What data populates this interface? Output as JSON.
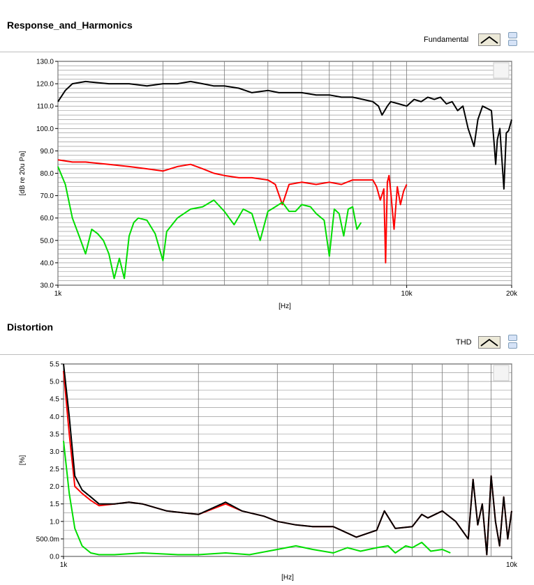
{
  "panels": [
    {
      "title": "Response_and_Harmonics",
      "legend_label": "Fundamental",
      "xlabel": "[Hz]",
      "ylabel": "[dB re 20u Pa]"
    },
    {
      "title": "Distortion",
      "legend_label": "THD",
      "xlabel": "[Hz]",
      "ylabel": "[%]"
    }
  ],
  "chart_data": [
    {
      "type": "line",
      "title": "Response_and_Harmonics",
      "xlabel": "[Hz]",
      "ylabel": "[dB re 20u Pa]",
      "x_scale": "log",
      "xlim": [
        1000,
        20000
      ],
      "ylim": [
        30,
        130
      ],
      "grid": true,
      "x_ticks": [
        {
          "v": 1000,
          "label": "1k"
        },
        {
          "v": 10000,
          "label": "10k"
        },
        {
          "v": 20000,
          "label": "20k"
        }
      ],
      "y_ticks": [
        {
          "v": 30,
          "label": "30.0"
        },
        {
          "v": 40,
          "label": "40.0"
        },
        {
          "v": 50,
          "label": "50.0"
        },
        {
          "v": 60,
          "label": "60.0"
        },
        {
          "v": 70,
          "label": "70.0"
        },
        {
          "v": 80,
          "label": "80.0"
        },
        {
          "v": 90,
          "label": "90.0"
        },
        {
          "v": 100,
          "label": "100.0"
        },
        {
          "v": 110,
          "label": "110.0"
        },
        {
          "v": 120,
          "label": "120.0"
        },
        {
          "v": 130,
          "label": "130.0"
        }
      ],
      "series": [
        {
          "color": "#000000",
          "x": [
            1000,
            1050,
            1100,
            1200,
            1400,
            1600,
            1800,
            2000,
            2200,
            2400,
            2600,
            2800,
            3000,
            3300,
            3600,
            4000,
            4300,
            4600,
            5000,
            5500,
            6000,
            6500,
            7000,
            7500,
            8000,
            8300,
            8500,
            8800,
            9000,
            9500,
            10000,
            10500,
            11000,
            11500,
            12000,
            12500,
            13000,
            13500,
            14000,
            14500,
            15000,
            15300,
            15600,
            16000,
            16500,
            17000,
            17500,
            17800,
            18000,
            18200,
            18500,
            18700,
            19000,
            19300,
            19600,
            20000
          ],
          "values": [
            112,
            117,
            120,
            121,
            120,
            120,
            119,
            120,
            120,
            121,
            120,
            119,
            119,
            118,
            116,
            117,
            116,
            116,
            116,
            115,
            115,
            114,
            114,
            113,
            112,
            110,
            106,
            110,
            112,
            111,
            110,
            113,
            112,
            114,
            113,
            114,
            111,
            112,
            108,
            110,
            100,
            96,
            92,
            104,
            110,
            109,
            108,
            94,
            84,
            95,
            100,
            89,
            73,
            98,
            99,
            104
          ]
        },
        {
          "color": "#ff0000",
          "x": [
            1000,
            1100,
            1200,
            1400,
            1600,
            1800,
            2000,
            2200,
            2400,
            2600,
            2800,
            3000,
            3300,
            3600,
            4000,
            4200,
            4400,
            4600,
            5000,
            5500,
            6000,
            6500,
            7000,
            7500,
            8000,
            8200,
            8400,
            8600,
            8700,
            8800,
            8900,
            9000,
            9200,
            9400,
            9600,
            9800,
            10000
          ],
          "values": [
            86,
            85,
            85,
            84,
            83,
            82,
            81,
            83,
            84,
            82,
            80,
            79,
            78,
            78,
            77,
            75,
            66,
            75,
            76,
            75,
            76,
            75,
            77,
            77,
            77,
            74,
            68,
            73,
            40,
            76,
            79,
            72,
            55,
            74,
            66,
            72,
            75
          ]
        },
        {
          "color": "#00dd00",
          "x": [
            1000,
            1050,
            1100,
            1150,
            1200,
            1250,
            1300,
            1350,
            1400,
            1450,
            1500,
            1550,
            1600,
            1650,
            1700,
            1800,
            1900,
            2000,
            2050,
            2100,
            2200,
            2400,
            2600,
            2800,
            3000,
            3200,
            3400,
            3600,
            3800,
            4000,
            4200,
            4400,
            4600,
            4800,
            5000,
            5300,
            5500,
            5800,
            6000,
            6200,
            6400,
            6600,
            6800,
            7000,
            7200,
            7400
          ],
          "values": [
            83,
            75,
            60,
            52,
            44,
            55,
            53,
            50,
            44,
            33,
            42,
            33,
            52,
            58,
            60,
            59,
            53,
            41,
            54,
            56,
            60,
            64,
            65,
            68,
            63,
            57,
            64,
            62,
            50,
            63,
            65,
            67,
            63,
            63,
            66,
            65,
            62,
            59,
            43,
            64,
            62,
            52,
            64,
            65,
            55,
            58
          ]
        }
      ]
    },
    {
      "type": "line",
      "title": "Distortion",
      "xlabel": "[Hz]",
      "ylabel": "[%]",
      "x_scale": "log",
      "xlim": [
        1000,
        10000
      ],
      "ylim": [
        0,
        5.5
      ],
      "grid": true,
      "x_ticks": [
        {
          "v": 1000,
          "label": "1k"
        },
        {
          "v": 10000,
          "label": "10k"
        }
      ],
      "y_ticks": [
        {
          "v": 0,
          "label": "0.0"
        },
        {
          "v": 0.5,
          "label": "500.0m"
        },
        {
          "v": 1,
          "label": "1.0"
        },
        {
          "v": 1.5,
          "label": "1.5"
        },
        {
          "v": 2,
          "label": "2.0"
        },
        {
          "v": 2.5,
          "label": "2.5"
        },
        {
          "v": 3,
          "label": "3.0"
        },
        {
          "v": 3.5,
          "label": "3.5"
        },
        {
          "v": 4,
          "label": "4.0"
        },
        {
          "v": 4.5,
          "label": "4.5"
        },
        {
          "v": 5,
          "label": "5.0"
        },
        {
          "v": 5.5,
          "label": "5.5"
        }
      ],
      "series": [
        {
          "color": "#ff0000",
          "x": [
            1000,
            1030,
            1060,
            1100,
            1150,
            1200,
            1300,
            1400,
            1500,
            1700,
            2000,
            2300,
            2500,
            2800,
            3000,
            3300,
            3600,
            4000,
            4500,
            5000,
            5200,
            5500,
            6000,
            6300,
            6500,
            7000,
            7500,
            8000,
            8200,
            8400,
            8600,
            8800,
            9000,
            9200,
            9400,
            9600,
            9800,
            10000
          ],
          "values": [
            5.3,
            3.5,
            2.0,
            1.8,
            1.6,
            1.45,
            1.5,
            1.55,
            1.5,
            1.3,
            1.2,
            1.5,
            1.3,
            1.15,
            1.0,
            0.9,
            0.85,
            0.85,
            0.55,
            0.75,
            1.3,
            0.8,
            0.85,
            1.2,
            1.1,
            1.3,
            1.0,
            0.5,
            2.2,
            0.9,
            1.5,
            0.05,
            2.3,
            1.0,
            0.3,
            1.7,
            0.5,
            1.3
          ]
        },
        {
          "color": "#000000",
          "x": [
            1000,
            1030,
            1060,
            1100,
            1150,
            1200,
            1300,
            1400,
            1500,
            1700,
            2000,
            2300,
            2500,
            2800,
            3000,
            3300,
            3600,
            4000,
            4500,
            5000,
            5200,
            5500,
            6000,
            6300,
            6500,
            7000,
            7500,
            8000,
            8200,
            8400,
            8600,
            8800,
            9000,
            9200,
            9400,
            9600,
            9800,
            10000
          ],
          "values": [
            5.5,
            4.0,
            2.3,
            1.9,
            1.7,
            1.5,
            1.5,
            1.55,
            1.5,
            1.3,
            1.2,
            1.55,
            1.3,
            1.15,
            1.0,
            0.9,
            0.85,
            0.85,
            0.55,
            0.75,
            1.3,
            0.8,
            0.85,
            1.2,
            1.1,
            1.3,
            1.0,
            0.5,
            2.2,
            0.9,
            1.5,
            0.05,
            2.3,
            1.0,
            0.3,
            1.7,
            0.5,
            1.3
          ]
        },
        {
          "color": "#00dd00",
          "x": [
            1000,
            1030,
            1060,
            1100,
            1150,
            1200,
            1300,
            1500,
            1800,
            2000,
            2300,
            2600,
            3000,
            3300,
            3600,
            4000,
            4300,
            4600,
            5000,
            5300,
            5500,
            5800,
            6000,
            6300,
            6600,
            7000,
            7300
          ],
          "values": [
            3.3,
            1.8,
            0.8,
            0.3,
            0.1,
            0.05,
            0.05,
            0.1,
            0.05,
            0.05,
            0.1,
            0.05,
            0.2,
            0.3,
            0.2,
            0.1,
            0.25,
            0.15,
            0.25,
            0.3,
            0.1,
            0.3,
            0.25,
            0.4,
            0.15,
            0.2,
            0.1
          ]
        }
      ]
    }
  ]
}
